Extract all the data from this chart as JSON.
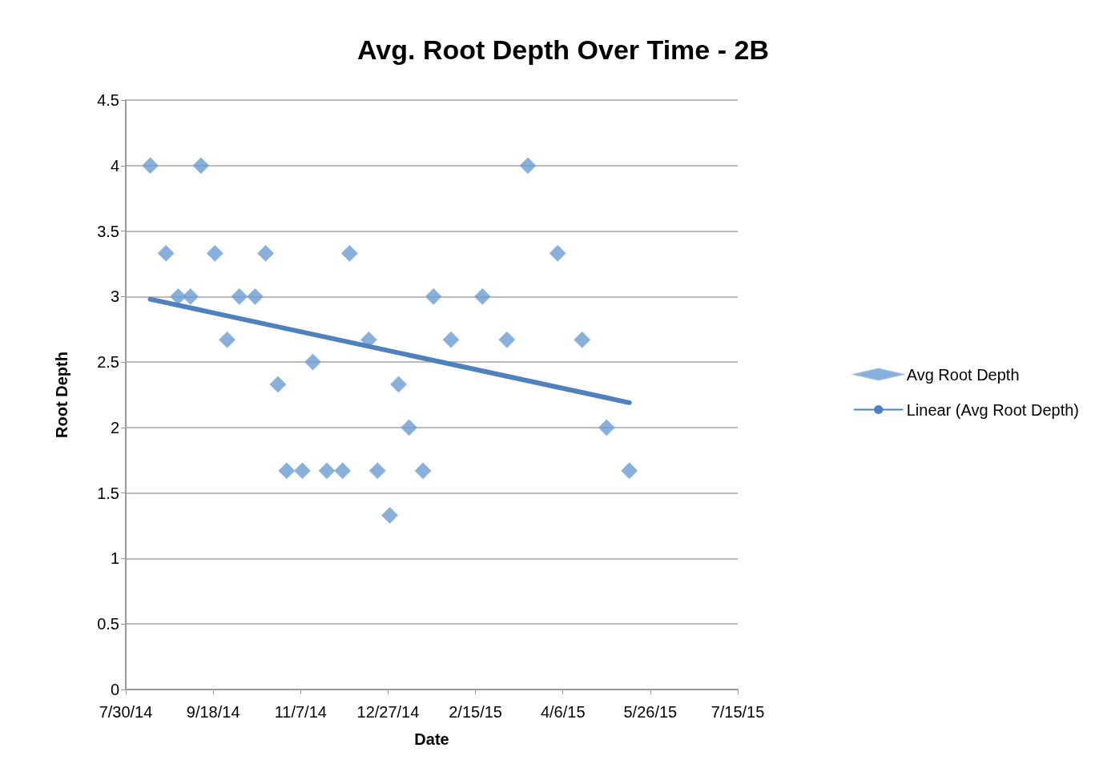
{
  "chart_data": {
    "type": "scatter",
    "title": "Avg. Root Depth Over Time - 2B",
    "xlabel": "Date",
    "ylabel": "Root Depth",
    "series": [
      {
        "name": "Avg Root Depth",
        "color": "#6c9bd2",
        "marker": "diamond",
        "x": [
          "2014-08-13",
          "2014-08-22",
          "2014-08-29",
          "2014-09-05",
          "2014-09-11",
          "2014-09-19",
          "2014-09-26",
          "2014-10-03",
          "2014-10-12",
          "2014-10-18",
          "2014-10-25",
          "2014-10-30",
          "2014-11-08",
          "2014-11-14",
          "2014-11-22",
          "2014-12-01",
          "2014-12-05",
          "2014-12-16",
          "2014-12-21",
          "2014-12-28",
          "2015-01-02",
          "2015-01-08",
          "2015-01-16",
          "2015-01-22",
          "2015-02-01",
          "2015-02-19",
          "2015-03-05",
          "2015-03-17",
          "2015-04-03",
          "2015-04-17",
          "2015-05-01",
          "2015-05-14"
        ],
        "values": [
          4,
          3.33,
          3,
          3,
          4,
          3.33,
          2.67,
          3,
          3,
          3.33,
          2.33,
          1.67,
          1.67,
          2.5,
          1.67,
          1.67,
          3.33,
          2.67,
          1.67,
          1.33,
          2.33,
          2,
          1.67,
          3,
          2.67,
          3,
          2.67,
          4,
          3.33,
          2.67,
          2,
          1.67
        ]
      },
      {
        "name": "Linear (Avg Root Depth)",
        "type": "line",
        "color": "#4f81bd",
        "marker": "none",
        "line_style": "solid",
        "x": [
          "2014-08-13",
          "2015-05-14"
        ],
        "values": [
          2.98,
          2.19
        ]
      }
    ],
    "xlim": [
      "2014-07-30",
      "2015-07-15"
    ],
    "xticks": [
      {
        "value": "2014-07-30",
        "label": "7/30/14"
      },
      {
        "value": "2014-09-18",
        "label": "9/18/14"
      },
      {
        "value": "2014-11-07",
        "label": "11/7/14"
      },
      {
        "value": "2014-12-27",
        "label": "12/27/14"
      },
      {
        "value": "2015-02-15",
        "label": "2/15/15"
      },
      {
        "value": "2015-04-06",
        "label": "4/6/15"
      },
      {
        "value": "2015-05-26",
        "label": "5/26/15"
      },
      {
        "value": "2015-07-15",
        "label": "7/15/15"
      }
    ],
    "ylim": [
      0,
      4.5
    ],
    "yticks": [
      0,
      0.5,
      1,
      1.5,
      2,
      2.5,
      3,
      3.5,
      4,
      4.5
    ],
    "grid": "y",
    "legend": "right"
  }
}
